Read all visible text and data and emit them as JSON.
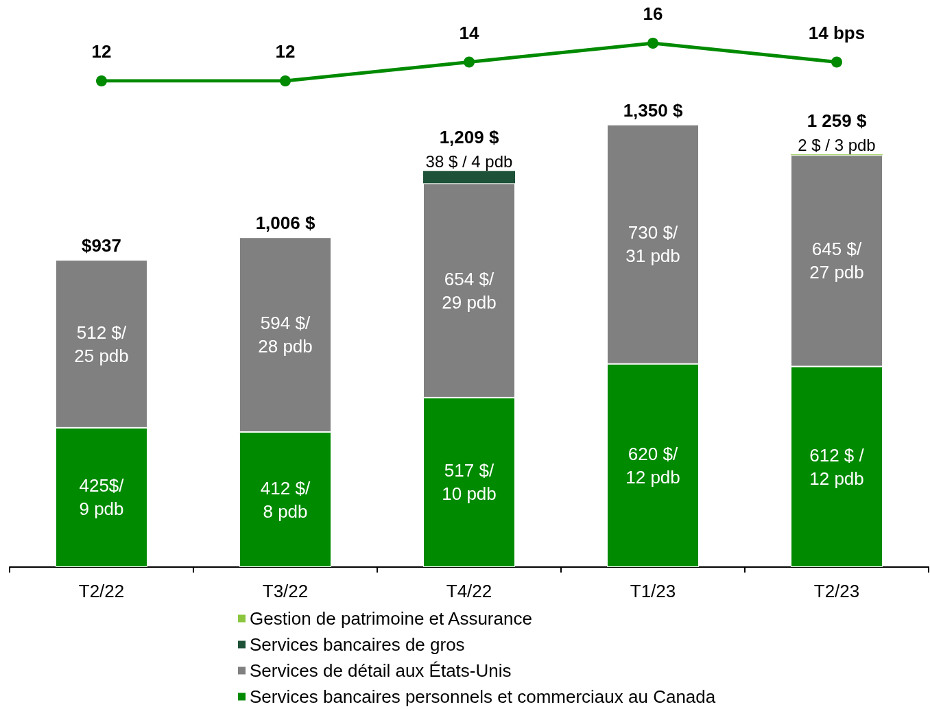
{
  "chart_data": [
    {
      "type": "line",
      "categories": [
        null,
        null,
        null,
        null,
        null
      ],
      "series": [
        {
          "color": "#008a00",
          "marker": "circle",
          "values": [
            12,
            12,
            14,
            16,
            14
          ],
          "value_labels": [
            "12",
            "12",
            "14",
            "16",
            "14 bps"
          ]
        }
      ],
      "tick_labels": false,
      "grid": false,
      "legend": false
    },
    {
      "type": "bar",
      "stacked": true,
      "categories": [
        "T2/22",
        "T3/22",
        "T4/22",
        "T1/23",
        "T2/23"
      ],
      "series": [
        {
          "name": "Services bancaires personnels et commerciaux au Canada",
          "color": "#008a00",
          "values": [
            425,
            412,
            517,
            620,
            612
          ],
          "value_labels": [
            "425$/ 9 pdb",
            "412 $/ 8 pdb",
            "517 $/ 10 pdb",
            "620 $/ 12 pdb",
            "612 $ / 12 pdb"
          ]
        },
        {
          "name": "Services de détail aux États-Unis",
          "color": "#808080",
          "values": [
            512,
            594,
            654,
            730,
            645
          ],
          "value_labels": [
            "512 $/ 25 pdb",
            "594 $/ 28 pdb",
            "654 $/ 29 pdb",
            "730 $/ 31 pdb",
            "645 $/ 27 pdb"
          ]
        },
        {
          "name": "Services bancaires de gros",
          "color": "#1e5238",
          "values": [
            null,
            null,
            38,
            null,
            null
          ],
          "value_labels": [
            null,
            null,
            "38 $ / 4 pdb",
            null,
            null
          ]
        },
        {
          "name": "Gestion de patrimoine et Assurance",
          "color": "#8cc63f",
          "values": [
            null,
            null,
            null,
            null,
            2
          ],
          "value_labels": [
            null,
            null,
            null,
            null,
            "2 $ / 3 pdb"
          ]
        }
      ],
      "totals": [
        "$937",
        "1,006 $",
        "1,209 $",
        "1,350 $",
        "1 259 $"
      ],
      "tick_labels": "x",
      "grid": false,
      "legend": "bottom"
    }
  ]
}
